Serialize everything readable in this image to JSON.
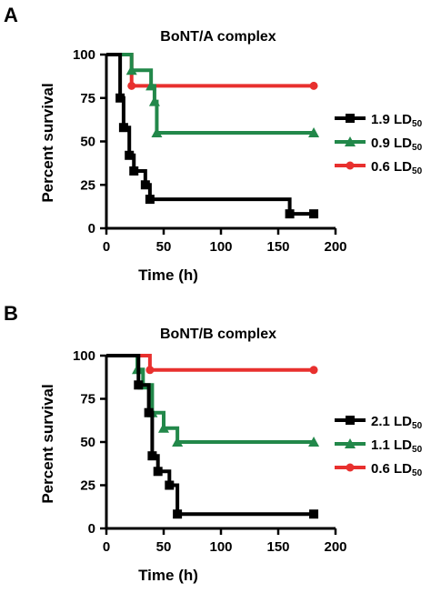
{
  "chart_data": [
    {
      "panel": "A",
      "type": "line",
      "step": true,
      "title": "BoNT/A complex",
      "xlabel": "Time (h)",
      "ylabel": "Percent survival",
      "xlim": [
        0,
        200
      ],
      "ylim": [
        0,
        100
      ],
      "xticks": [
        "0",
        "50",
        "100",
        "150",
        "200"
      ],
      "yticks": [
        "0",
        "25",
        "50",
        "75",
        "100"
      ],
      "grid": false,
      "legend_position": "right",
      "series": [
        {
          "name": "1.9 LD",
          "name_sub": "50",
          "color": "#000000",
          "marker": "square",
          "x": [
            0,
            12,
            15,
            20,
            24,
            34,
            38,
            40,
            157,
            160,
            181
          ],
          "y": [
            100,
            75,
            58,
            42,
            33,
            25,
            16.7,
            16.7,
            16.7,
            8.3,
            8.3
          ]
        },
        {
          "name": "0.9 LD",
          "name_sub": "50",
          "color": "#22884a",
          "marker": "triangle",
          "x": [
            0,
            20,
            22,
            36,
            39,
            42,
            44,
            181
          ],
          "y": [
            100,
            100,
            91,
            91,
            82,
            73,
            55,
            55
          ]
        },
        {
          "name": "0.6 LD",
          "name_sub": "50",
          "color": "#e8302e",
          "marker": "circle",
          "x": [
            0,
            19,
            22,
            181
          ],
          "y": [
            100,
            100,
            82,
            82
          ]
        }
      ]
    },
    {
      "panel": "B",
      "type": "line",
      "step": true,
      "title": "BoNT/B complex",
      "xlabel": "Time (h)",
      "ylabel": "Percent survival",
      "xlim": [
        0,
        200
      ],
      "ylim": [
        0,
        100
      ],
      "xticks": [
        "0",
        "50",
        "100",
        "150",
        "200"
      ],
      "yticks": [
        "0",
        "25",
        "50",
        "75",
        "100"
      ],
      "grid": false,
      "legend_position": "right",
      "series": [
        {
          "name": "2.1 LD",
          "name_sub": "50",
          "color": "#000000",
          "marker": "square",
          "x": [
            0,
            24,
            28,
            37,
            40,
            45,
            50,
            55,
            62,
            181
          ],
          "y": [
            100,
            100,
            83,
            67,
            42,
            33,
            33,
            25,
            8.3,
            8.3
          ]
        },
        {
          "name": "1.1 LD",
          "name_sub": "50",
          "color": "#22884a",
          "marker": "triangle",
          "x": [
            0,
            24,
            27,
            32,
            37,
            40,
            45,
            50,
            62,
            181
          ],
          "y": [
            100,
            100,
            92,
            83,
            83,
            67,
            67,
            58,
            50,
            50
          ]
        },
        {
          "name": "0.6 LD",
          "name_sub": "50",
          "color": "#e8302e",
          "marker": "circle",
          "x": [
            0,
            36,
            38,
            181
          ],
          "y": [
            100,
            100,
            91.7,
            91.7
          ]
        }
      ]
    }
  ]
}
